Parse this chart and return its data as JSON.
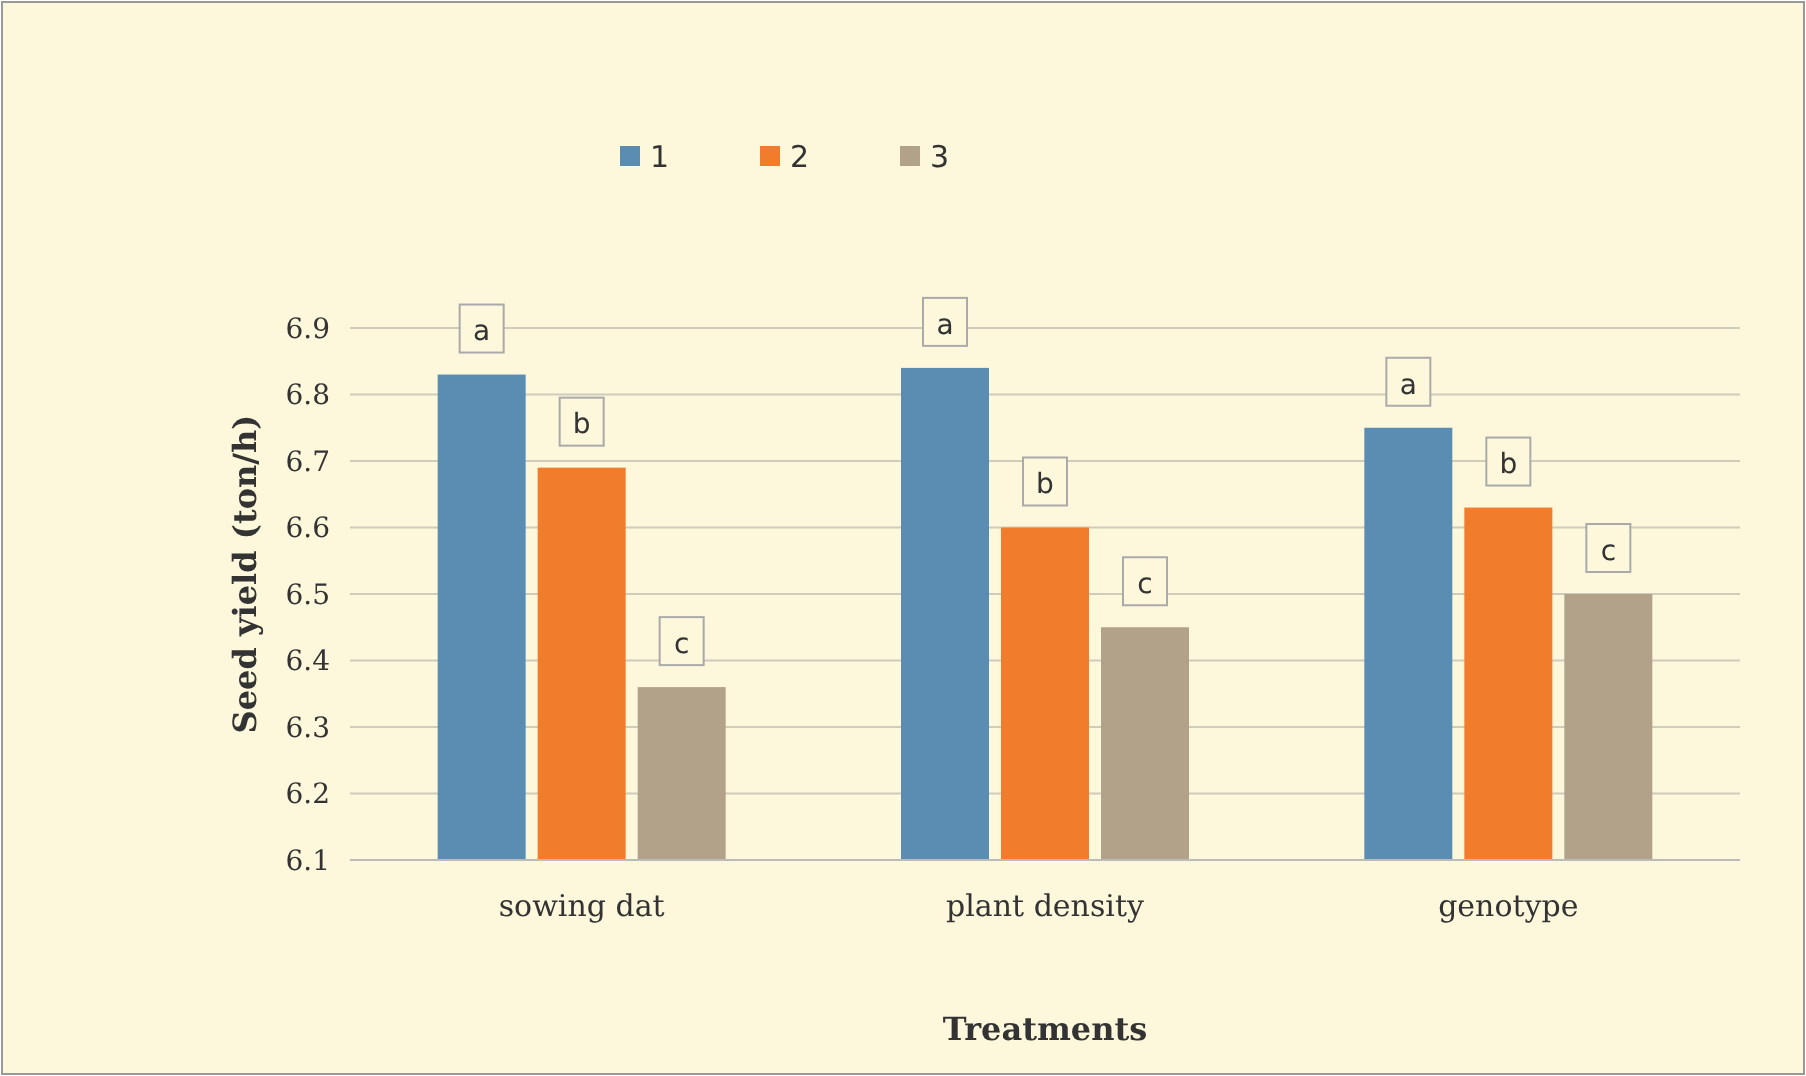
{
  "chart_data": {
    "type": "bar",
    "xlabel": "Treatments",
    "ylabel": "Seed yield (ton/h)",
    "categories": [
      "sowing dat",
      "plant density",
      "genotype"
    ],
    "series": [
      {
        "name": "1",
        "color": "#5b8db3",
        "values": [
          6.83,
          6.84,
          6.75
        ],
        "value_labels": [
          "a",
          "a",
          "a"
        ]
      },
      {
        "name": "2",
        "color": "#f07c2c",
        "values": [
          6.69,
          6.6,
          6.63
        ],
        "value_labels": [
          "b",
          "b",
          "b"
        ]
      },
      {
        "name": "3",
        "color": "#b3a28a",
        "values": [
          6.36,
          6.45,
          6.5
        ],
        "value_labels": [
          "c",
          "c",
          "c"
        ]
      }
    ],
    "ylim": [
      6.1,
      6.9
    ],
    "yticks": [
      6.1,
      6.2,
      6.3,
      6.4,
      6.5,
      6.6,
      6.7,
      6.8,
      6.9
    ],
    "grid": "y",
    "legend": "top"
  }
}
